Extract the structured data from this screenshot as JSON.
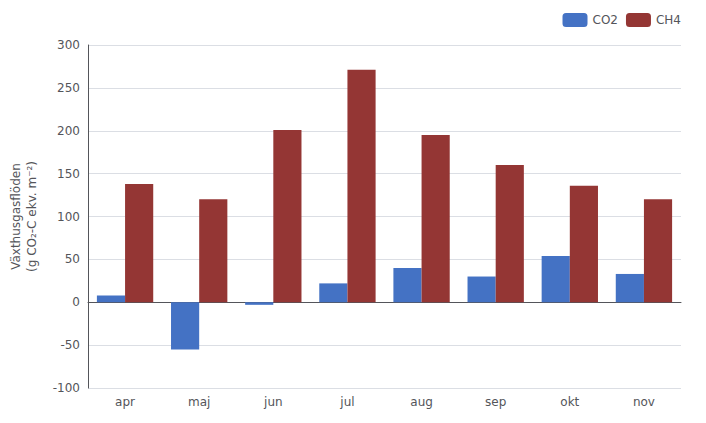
{
  "chart_data": {
    "type": "bar",
    "ylabel": "Växthusgasflöden\n(g CO₂-C ekv. m⁻²)",
    "categories": [
      "apr",
      "maj",
      "jun",
      "jul",
      "aug",
      "sep",
      "okt",
      "nov"
    ],
    "series": [
      {
        "name": "CO2",
        "color": "#4472C4",
        "values": [
          8,
          -55,
          -3,
          22,
          40,
          30,
          54,
          33
        ]
      },
      {
        "name": "CH4",
        "color": "#943634",
        "values": [
          138,
          120,
          201,
          271,
          195,
          160,
          136,
          120
        ]
      }
    ],
    "ylim": [
      -100,
      300
    ],
    "yticks": [
      -100,
      -50,
      0,
      50,
      100,
      150,
      200,
      250,
      300
    ],
    "grid": true,
    "legend": "upper right"
  }
}
